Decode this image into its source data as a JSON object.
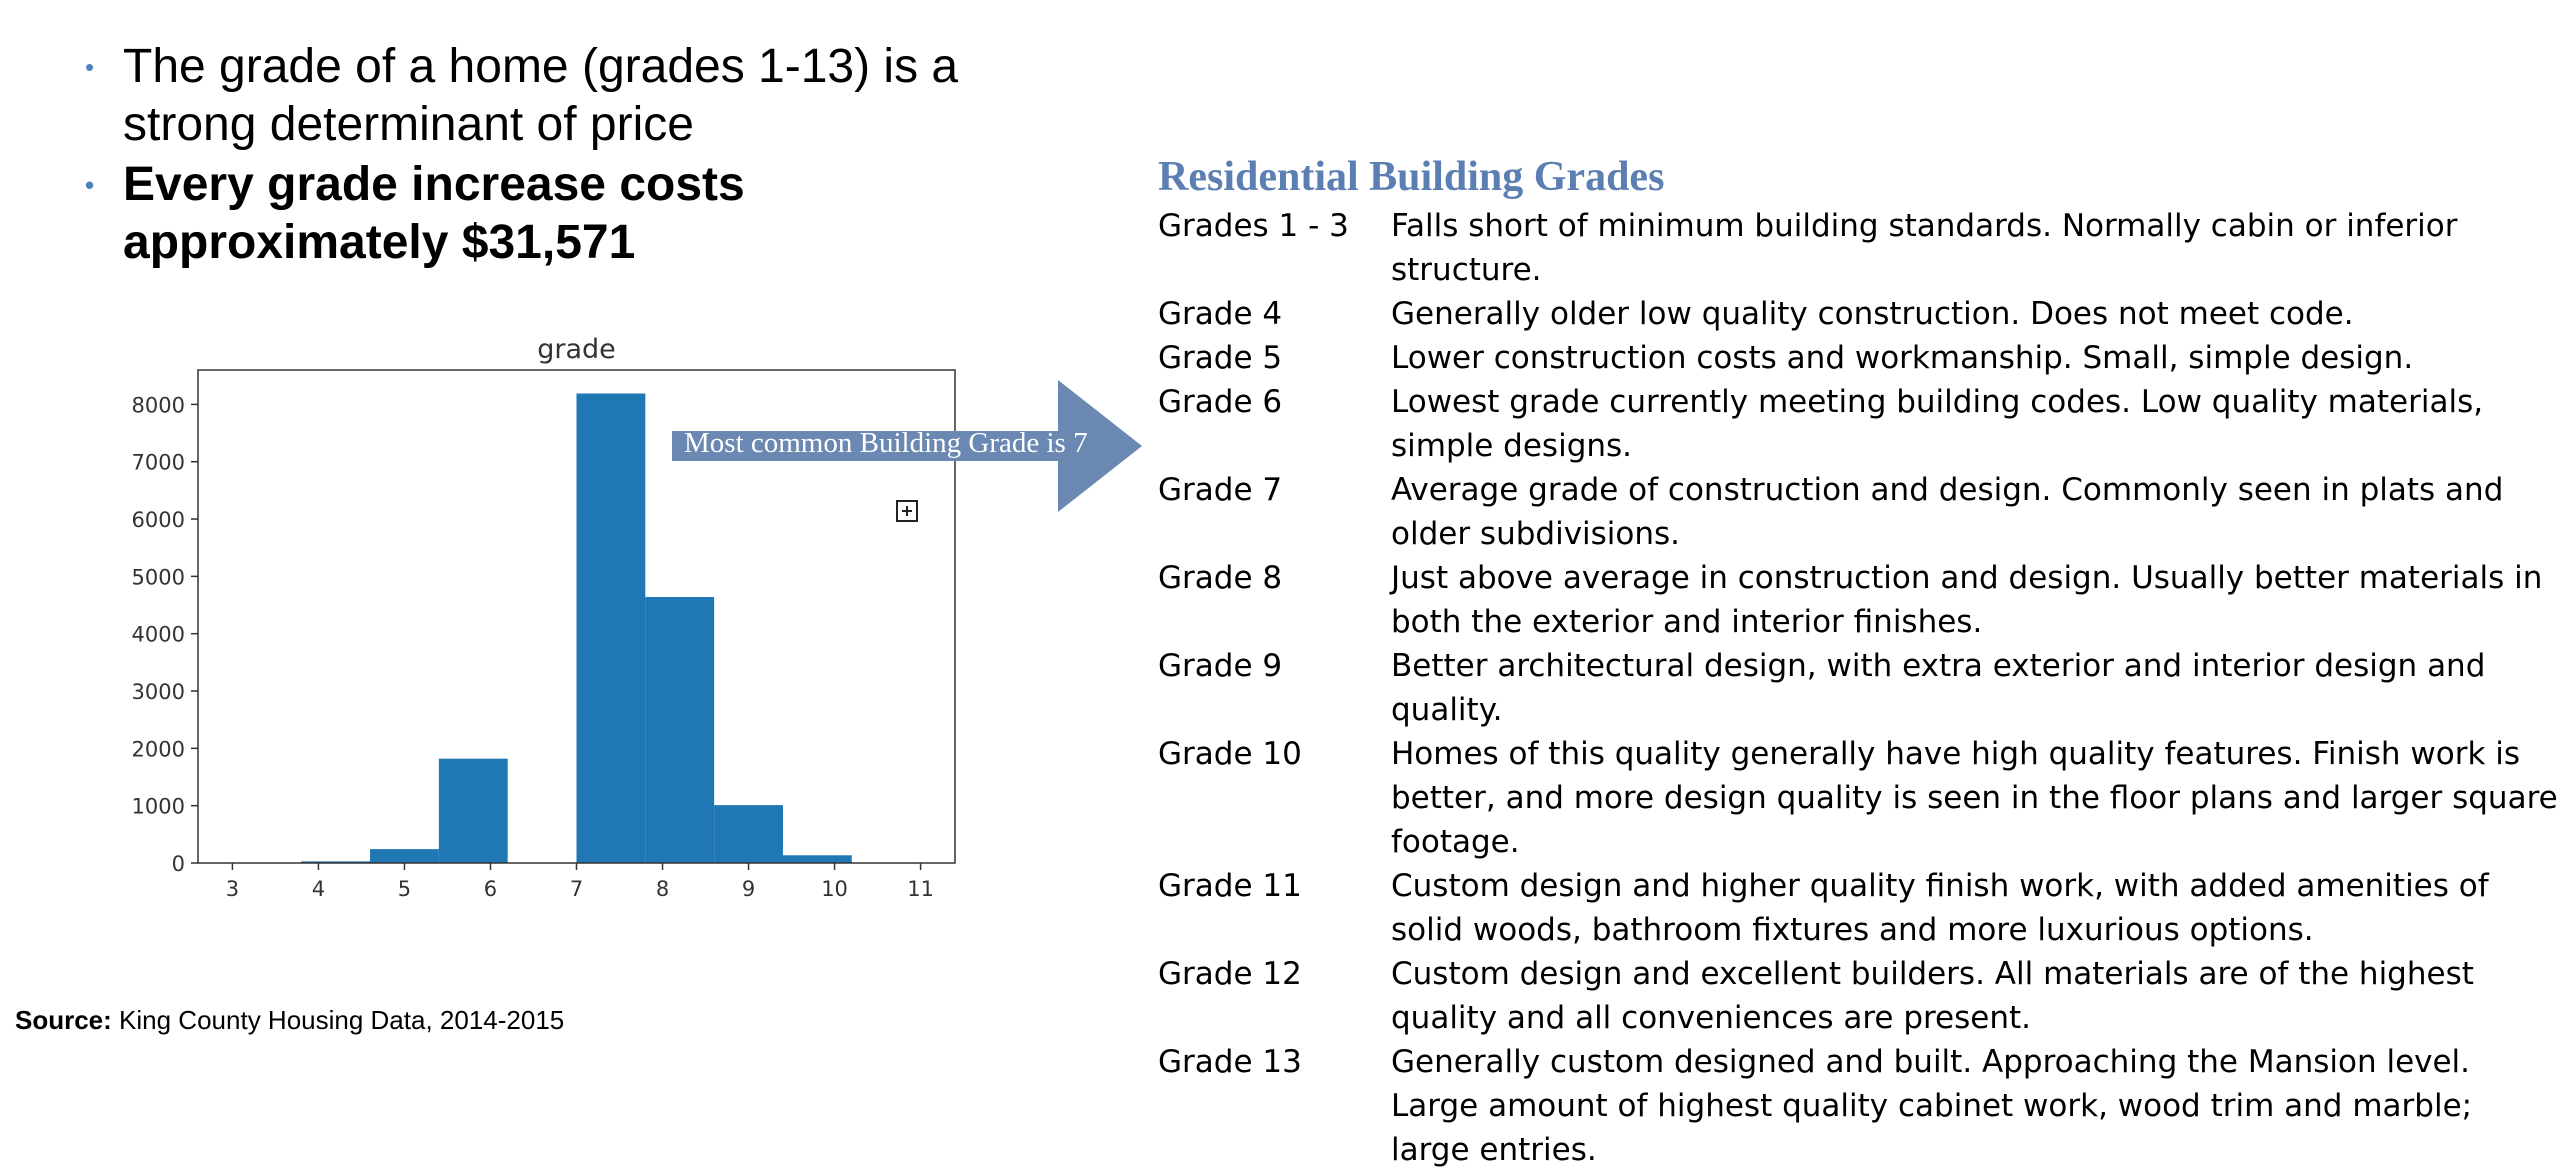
{
  "bullets": [
    "The grade of a home (grades 1-13) is a strong determinant of price",
    "Every grade increase costs approximately $31,571"
  ],
  "bullet_marker": "•",
  "callout": "Most common Building Grade is 7",
  "source": {
    "label": "Source:",
    "text": "King County Housing Data, 2014-2015"
  },
  "colors": {
    "bar": "#1f77b4",
    "accent": "#4f81bd",
    "arrow": "#6a88b2",
    "title": "#5b7fb2"
  },
  "grades_title": "Residential Building Grades",
  "grades": [
    {
      "label": "Grades 1 - 3",
      "desc": "Falls short of minimum building standards. Normally cabin or inferior structure."
    },
    {
      "label": "Grade 4",
      "desc": "Generally older low quality construction. Does not meet code."
    },
    {
      "label": "Grade 5",
      "desc": "Lower construction costs and workmanship. Small, simple design."
    },
    {
      "label": "Grade 6",
      "desc": "Lowest grade currently meeting building codes. Low quality materials, simple designs."
    },
    {
      "label": "Grade 7",
      "desc": "Average grade of construction and design. Commonly seen in plats and older subdivisions."
    },
    {
      "label": "Grade 8",
      "desc": "Just above average in construction and design. Usually better materials in both the exterior and interior finishes."
    },
    {
      "label": "Grade 9",
      "desc": "Better architectural design, with extra exterior and interior design and quality."
    },
    {
      "label": "Grade 10",
      "desc": "Homes of this quality generally have high quality features. Finish work is better, and more design quality is seen in the floor plans and larger square footage."
    },
    {
      "label": "Grade 11",
      "desc": "Custom design and higher quality finish work, with added amenities of solid woods, bathroom fixtures and more luxurious options."
    },
    {
      "label": "Grade 12",
      "desc": "Custom design and excellent builders. All materials are of the highest quality and all conveniences are present."
    },
    {
      "label": "Grade 13",
      "desc": "Generally custom designed and built. Approaching the Mansion level. Large amount of highest quality cabinet work, wood trim and marble; large entries."
    }
  ],
  "chart_data": {
    "type": "bar",
    "title": "grade",
    "xlabel": "",
    "ylabel": "",
    "xlim": [
      2.6,
      11.4
    ],
    "ylim": [
      0,
      8600
    ],
    "xticks": [
      3,
      4,
      5,
      6,
      7,
      8,
      9,
      10,
      11
    ],
    "yticks": [
      0,
      1000,
      2000,
      3000,
      4000,
      5000,
      6000,
      7000,
      8000
    ],
    "bins": [
      {
        "x0": 3.0,
        "x1": 3.8,
        "value": 1
      },
      {
        "x0": 3.8,
        "x1": 4.6,
        "value": 29
      },
      {
        "x0": 4.6,
        "x1": 5.4,
        "value": 242
      },
      {
        "x0": 5.4,
        "x1": 6.2,
        "value": 1820
      },
      {
        "x0": 6.2,
        "x1": 7.0,
        "value": 0
      },
      {
        "x0": 7.0,
        "x1": 7.8,
        "value": 8190
      },
      {
        "x0": 7.8,
        "x1": 8.6,
        "value": 4640
      },
      {
        "x0": 8.6,
        "x1": 9.4,
        "value": 1010
      },
      {
        "x0": 9.4,
        "x1": 10.2,
        "value": 135
      },
      {
        "x0": 10.2,
        "x1": 11.0,
        "value": 4
      }
    ],
    "grid": false,
    "legend": null
  }
}
